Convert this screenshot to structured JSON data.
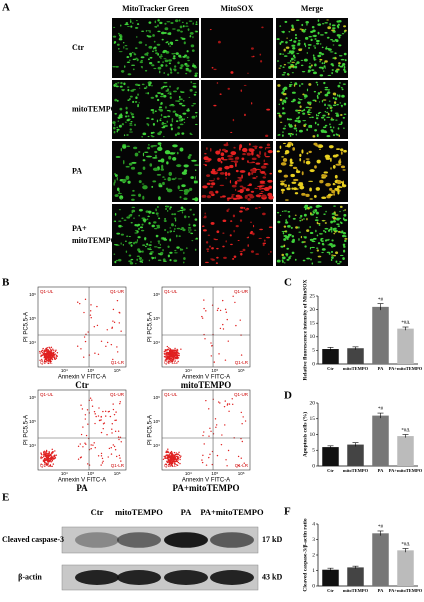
{
  "panel_labels": [
    "A",
    "B",
    "C",
    "D",
    "E",
    "F"
  ],
  "figure_a": {
    "column_headers": [
      "MitoTracker Green",
      "MitoSOX",
      "Merge"
    ],
    "row_labels": [
      [
        "Ctr"
      ],
      [
        "mitoTEMPO"
      ],
      [
        "PA"
      ],
      [
        "PA+",
        "mitoTEMPO"
      ]
    ]
  },
  "figure_b": {
    "x_label": "Annexin V FITC-A",
    "y_label": "PI PC5.5-A",
    "axis_ticks": [
      "10⁴",
      "10⁵",
      "10⁶"
    ],
    "quadrants": [
      "Q1-UL",
      "Q1-UR",
      "Q1-LL",
      "Q1-LR"
    ],
    "plot_labels": [
      "Ctr",
      "mitoTEMPO",
      "PA",
      "PA+mitoTEMPO"
    ]
  },
  "figure_e": {
    "lanes": [
      "Ctr",
      "mitoTEMPO",
      "PA",
      "PA+mitoTEMPO"
    ],
    "rows": [
      {
        "name": "Cleaved caspase-3",
        "size": "17 kD"
      },
      {
        "name": "β-actin",
        "size": "43 kD"
      }
    ]
  },
  "chart_data": [
    {
      "type": "bar",
      "y_label": "Relative fluorescence intensity of MitoSOX",
      "categories": [
        "Ctr",
        "mitoTEMPO",
        "PA",
        "PA+mitoTEMPO"
      ],
      "values": [
        5.5,
        5.8,
        21,
        13
      ],
      "errors": [
        0.6,
        0.5,
        1.2,
        0.6
      ],
      "significance": [
        null,
        null,
        "*#",
        "*#Δ"
      ],
      "colors": [
        "#111111",
        "#444444",
        "#777777",
        "#bbbbbb"
      ],
      "ylim": [
        0,
        25
      ],
      "yticks": [
        0,
        5,
        10,
        15,
        20,
        25
      ]
    },
    {
      "type": "bar",
      "y_label": "Apoptosis cells (%)",
      "categories": [
        "Ctr",
        "mitoTEMPO",
        "PA",
        "PA+mitoTEMPO"
      ],
      "values": [
        6,
        6.8,
        16,
        9.5
      ],
      "errors": [
        0.4,
        0.6,
        0.8,
        0.5
      ],
      "significance": [
        null,
        null,
        "*#",
        "*#Δ"
      ],
      "colors": [
        "#111111",
        "#444444",
        "#777777",
        "#bbbbbb"
      ],
      "ylim": [
        0,
        20
      ],
      "yticks": [
        0,
        5,
        10,
        15,
        20
      ]
    },
    {
      "type": "bar",
      "y_label": "Cleaved caspase-3/β-actin ratio",
      "categories": [
        "Ctr",
        "mitoTEMPO",
        "PA",
        "PA+mitoTEMPO"
      ],
      "values": [
        1.05,
        1.2,
        3.4,
        2.3
      ],
      "errors": [
        0.1,
        0.08,
        0.15,
        0.12
      ],
      "significance": [
        null,
        null,
        "*#",
        "*#Δ"
      ],
      "colors": [
        "#111111",
        "#444444",
        "#777777",
        "#bbbbbb"
      ],
      "ylim": [
        0,
        4
      ],
      "yticks": [
        0,
        1,
        2,
        3,
        4
      ]
    }
  ]
}
